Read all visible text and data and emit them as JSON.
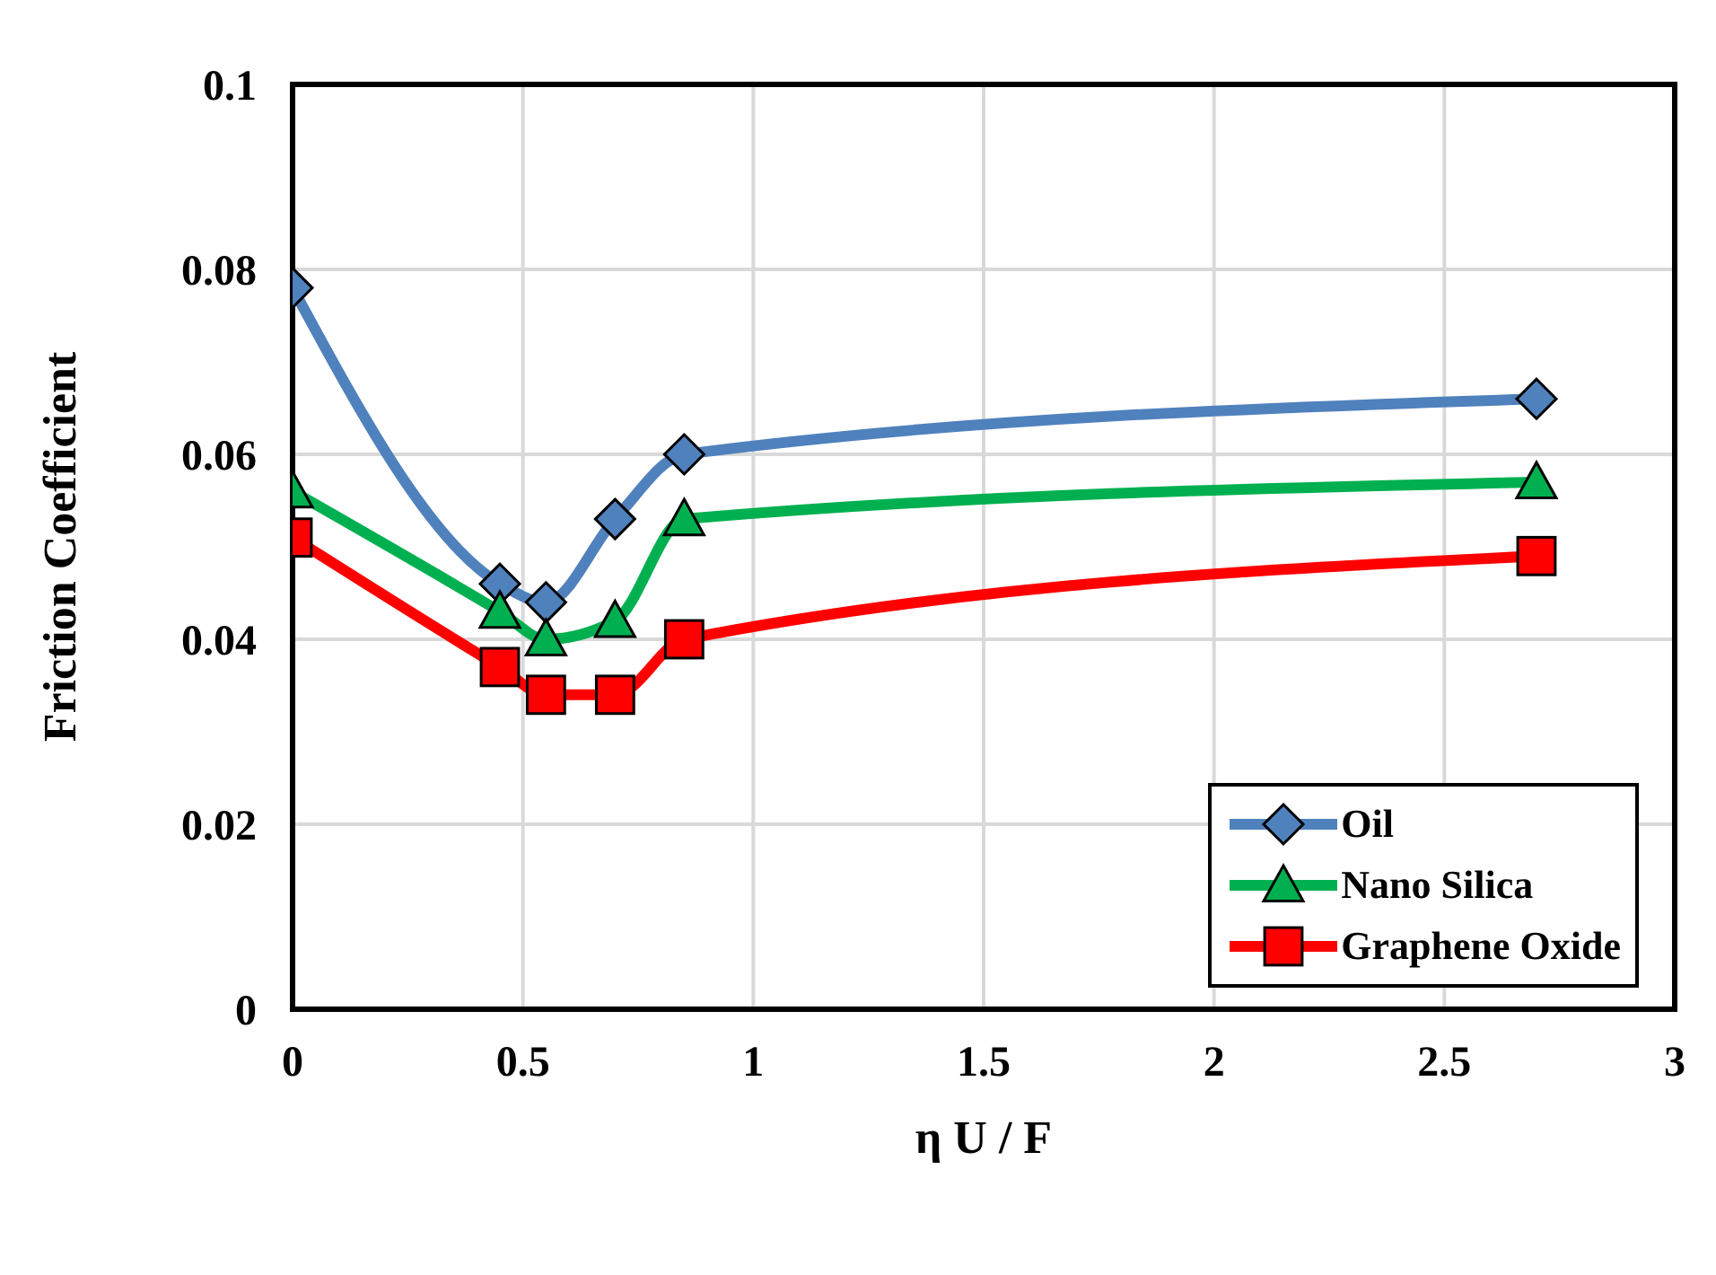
{
  "chart_data": {
    "type": "line",
    "xlabel": "η U / F",
    "ylabel": "Friction Coefficient",
    "x": [
      0,
      0.45,
      0.55,
      0.7,
      0.85,
      2.7
    ],
    "series": [
      {
        "name": "Oil",
        "color": "#4f81bd",
        "marker": "diamond",
        "values": [
          0.078,
          0.046,
          0.044,
          0.053,
          0.06,
          0.066
        ]
      },
      {
        "name": "Nano Silica",
        "color": "#00b050",
        "marker": "triangle",
        "values": [
          0.056,
          0.043,
          0.04,
          0.042,
          0.053,
          0.057
        ]
      },
      {
        "name": "Graphene Oxide",
        "color": "#ff0000",
        "marker": "square",
        "values": [
          0.051,
          0.037,
          0.034,
          0.034,
          0.04,
          0.049
        ]
      }
    ],
    "xlim": [
      0,
      3
    ],
    "xticks": [
      0,
      0.5,
      1,
      1.5,
      2,
      2.5,
      3
    ],
    "ylim": [
      0,
      0.1
    ],
    "yticks": [
      0,
      0.02,
      0.04,
      0.06,
      0.08,
      0.1
    ],
    "grid": true,
    "legend": "bottom right",
    "line_style": "solid"
  }
}
